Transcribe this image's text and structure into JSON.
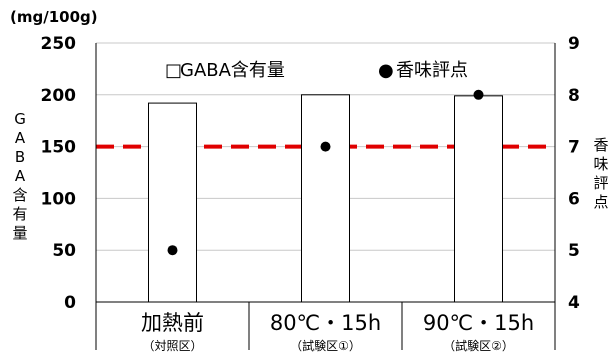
{
  "chart_data": {
    "type": "bar",
    "categories": [
      {
        "main": "加熱前",
        "sub": "（対照区）"
      },
      {
        "main": "80℃・15h",
        "sub": "（試験区①）"
      },
      {
        "main": "90℃・15h",
        "sub": "（試験区②）"
      }
    ],
    "series": [
      {
        "name": "GABA含有量",
        "kind": "bar",
        "axis": "left",
        "values": [
          192,
          200,
          199
        ]
      },
      {
        "name": "香味評点",
        "kind": "point",
        "axis": "right",
        "values": [
          5.0,
          7.0,
          8.0
        ]
      }
    ],
    "y_left": {
      "label": "GABA含有量",
      "unit": "(mg/100g)",
      "min": 0,
      "max": 250,
      "step": 50
    },
    "y_right": {
      "label": "香味評点",
      "min": 4,
      "max": 9,
      "step": 1
    },
    "reference_line": {
      "axis": "right",
      "value": 7,
      "style": "dashed",
      "color": "#e00000"
    },
    "legend": {
      "placement": "top-right",
      "bar_symbol": "□",
      "point_symbol": "●"
    },
    "grid": "horizontal"
  }
}
